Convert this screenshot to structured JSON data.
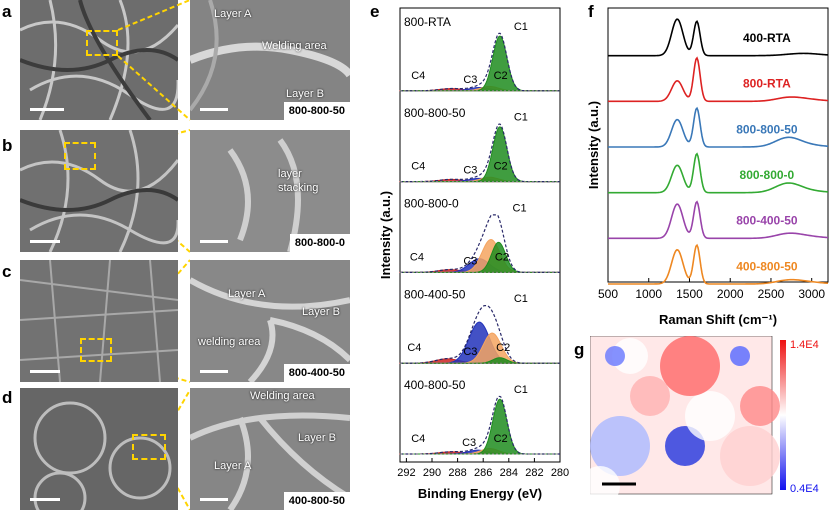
{
  "panels": {
    "a": {
      "letter": "a",
      "sample": "800-800-50",
      "annotations": [
        "Layer A",
        "Welding area",
        "Layer B"
      ]
    },
    "b": {
      "letter": "b",
      "sample": "800-800-0",
      "annotations": [
        "layer",
        "stacking"
      ]
    },
    "c": {
      "letter": "c",
      "sample": "800-400-50",
      "annotations": [
        "Layer A",
        "Layer B",
        "welding area"
      ]
    },
    "d": {
      "letter": "d",
      "sample": "400-800-50",
      "annotations": [
        "Welding area",
        "Layer B",
        "Layer A"
      ]
    },
    "e": {
      "letter": "e"
    },
    "f": {
      "letter": "f"
    },
    "g": {
      "letter": "g"
    }
  },
  "colors": {
    "C1": "#1e8c1e",
    "C2": "#f4a460",
    "C3": "#2233bb",
    "C4": "#cc2222",
    "zoom_box": "#ffd400"
  },
  "chart_data": [
    {
      "type": "line",
      "panel": "e",
      "xlabel": "Binding Energy (eV)",
      "ylabel": "Intensity (a.u.)",
      "x_ticks": [
        "292",
        "290",
        "288",
        "286",
        "284",
        "282",
        "280"
      ],
      "xlim": [
        292.5,
        280
      ],
      "series": [
        {
          "name": "800-RTA",
          "peak_labels": [
            "C1",
            "C2",
            "C3",
            "C4"
          ],
          "peaks": [
            {
              "component": "C1",
              "center": 284.7,
              "height": 1.0
            },
            {
              "component": "C2",
              "center": 285.5,
              "height": 0.08
            },
            {
              "component": "C3",
              "center": 286.3,
              "height": 0.06
            },
            {
              "component": "C4",
              "center": 288.5,
              "height": 0.04
            }
          ]
        },
        {
          "name": "800-800-50",
          "peak_labels": [
            "C1",
            "C2",
            "C3",
            "C4"
          ],
          "peaks": [
            {
              "component": "C1",
              "center": 284.7,
              "height": 1.0
            },
            {
              "component": "C2",
              "center": 285.5,
              "height": 0.08
            },
            {
              "component": "C3",
              "center": 286.3,
              "height": 0.06
            },
            {
              "component": "C4",
              "center": 288.5,
              "height": 0.04
            }
          ]
        },
        {
          "name": "800-800-0",
          "peak_labels": [
            "C2",
            "C1",
            "C4",
            "C3"
          ],
          "peaks": [
            {
              "component": "C1",
              "center": 284.8,
              "height": 0.55
            },
            {
              "component": "C2",
              "center": 285.4,
              "height": 0.6
            },
            {
              "component": "C3",
              "center": 286.3,
              "height": 0.25
            },
            {
              "component": "C4",
              "center": 288.6,
              "height": 0.05
            }
          ]
        },
        {
          "name": "800-400-50",
          "peak_labels": [
            "C3",
            "C2",
            "C4",
            "C1"
          ],
          "peaks": [
            {
              "component": "C1",
              "center": 284.7,
              "height": 0.1
            },
            {
              "component": "C2",
              "center": 285.3,
              "height": 0.55
            },
            {
              "component": "C3",
              "center": 286.3,
              "height": 0.75
            },
            {
              "component": "C4",
              "center": 288.8,
              "height": 0.08
            }
          ]
        },
        {
          "name": "400-800-50",
          "peak_labels": [
            "C1",
            "C2",
            "C3",
            "C4"
          ],
          "peaks": [
            {
              "component": "C1",
              "center": 284.7,
              "height": 1.0
            },
            {
              "component": "C2",
              "center": 285.5,
              "height": 0.1
            },
            {
              "component": "C3",
              "center": 286.4,
              "height": 0.07
            },
            {
              "component": "C4",
              "center": 288.5,
              "height": 0.04
            }
          ]
        }
      ]
    },
    {
      "type": "line",
      "panel": "f",
      "xlabel": "Raman Shift (cm⁻¹)",
      "ylabel": "Intensity (a.u.)",
      "x_ticks": [
        "500",
        "1000",
        "1500",
        "2000",
        "2500",
        "3000"
      ],
      "xlim": [
        500,
        3200
      ],
      "series": [
        {
          "name": "400-RTA",
          "color": "#000000",
          "D_height": 0.8,
          "G_height": 0.75,
          "twoD_height": 0.0
        },
        {
          "name": "800-RTA",
          "color": "#dd2222",
          "D_height": 0.45,
          "G_height": 0.95,
          "twoD_height": 0.06
        },
        {
          "name": "800-800-50",
          "color": "#3a78b8",
          "D_height": 0.6,
          "G_height": 0.85,
          "twoD_height": 0.18
        },
        {
          "name": "800-800-0",
          "color": "#33aa33",
          "D_height": 0.6,
          "G_height": 0.85,
          "twoD_height": 0.18
        },
        {
          "name": "800-400-50",
          "color": "#9944aa",
          "D_height": 0.75,
          "G_height": 0.8,
          "twoD_height": 0.08
        },
        {
          "name": "400-800-50",
          "color": "#ee8822",
          "D_height": 0.75,
          "G_height": 0.85,
          "twoD_height": 0.06
        }
      ]
    },
    {
      "type": "heatmap",
      "panel": "g",
      "colorbar_max": "1.4E4",
      "colorbar_min": "0.4E4",
      "max_color": "#ee1111",
      "min_color": "#1111ee"
    }
  ]
}
